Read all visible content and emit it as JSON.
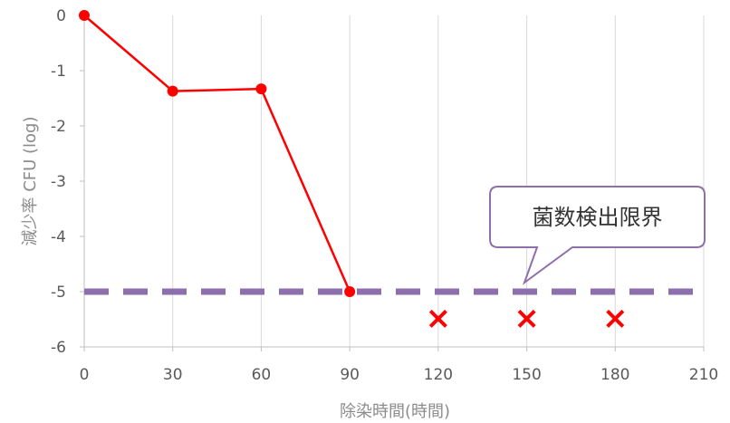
{
  "chart_data": {
    "type": "line",
    "xlabel": "除染時間(時間)",
    "ylabel": "減少率 CFU (log)",
    "xlim": [
      0,
      210
    ],
    "ylim": [
      -6,
      0
    ],
    "x_ticks": [
      "0",
      "30",
      "60",
      "90",
      "120",
      "150",
      "180",
      "210"
    ],
    "y_ticks": [
      "0",
      "-1",
      "-2",
      "-3",
      "-4",
      "-5",
      "-6"
    ],
    "x_tick_values": [
      0,
      30,
      60,
      90,
      120,
      150,
      180,
      210
    ],
    "y_tick_values": [
      0,
      -1,
      -2,
      -3,
      -4,
      -5,
      -6
    ],
    "grid": "vertical",
    "series": [
      {
        "style": "line-with-markers",
        "color": "#ff0000",
        "x": [
          0,
          30,
          60,
          90
        ],
        "y": [
          0,
          -1.37,
          -1.33,
          -5
        ]
      }
    ],
    "detection_limit": {
      "value": -5,
      "style": "dashed",
      "color": "#8e6fad",
      "label": "菌数検出限界"
    },
    "below_limit_markers": {
      "symbol": "×",
      "color": "#ff0000",
      "x": [
        120,
        150,
        180
      ],
      "y": [
        -5.5,
        -5.5,
        -5.5
      ]
    }
  }
}
